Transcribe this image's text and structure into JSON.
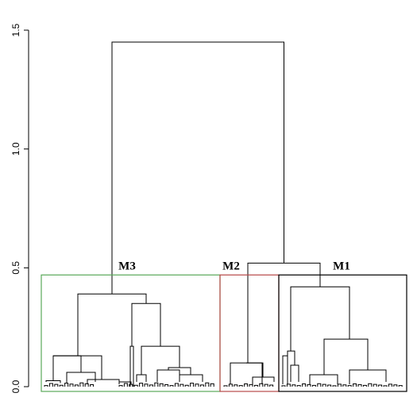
{
  "chart_data": {
    "type": "dendrogram",
    "title": "",
    "xlabel": "",
    "ylabel": "",
    "ylim": [
      0,
      1.5
    ],
    "y_ticks": [
      {
        "value": 0.0,
        "label": "0.0"
      },
      {
        "value": 0.5,
        "label": "0.5"
      },
      {
        "value": 1.0,
        "label": "1.0"
      },
      {
        "value": 1.5,
        "label": "1.5"
      }
    ],
    "root_merge_height": 1.45,
    "cut_height": 0.47,
    "clusters": [
      {
        "name": "M3",
        "label": "M3",
        "merge_height": 0.39,
        "color": "#5aa95a"
      },
      {
        "name": "M2",
        "label": "M2",
        "merge_height": 0.1,
        "color": "#b84a4a"
      },
      {
        "name": "M1",
        "label": "M1",
        "merge_height": 0.42,
        "color": "#000000"
      }
    ],
    "merges": [
      {
        "between": [
          "M2",
          "M1"
        ],
        "height": 0.52
      },
      {
        "between": [
          "M3",
          "M2+M1"
        ],
        "height": 1.45
      }
    ]
  }
}
